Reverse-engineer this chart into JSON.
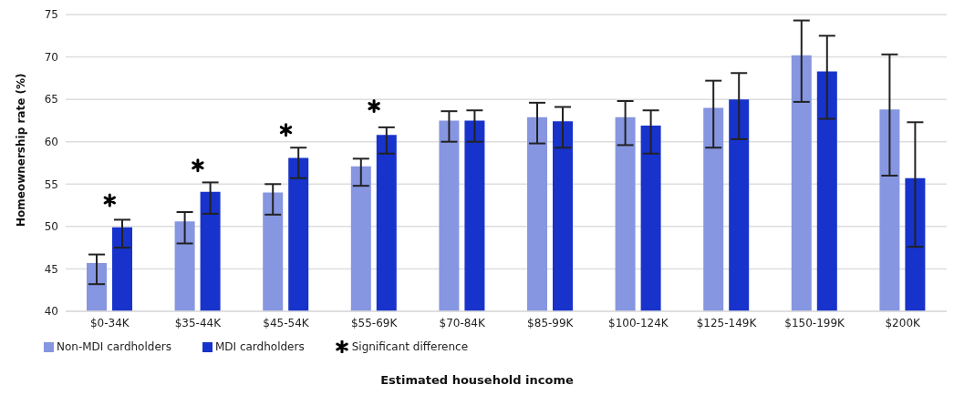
{
  "chart_data": {
    "type": "bar",
    "xlabel": "Estimated household income",
    "ylabel": "Homeownership rate (%)",
    "categories": [
      "$0-34K",
      "$35-44K",
      "$45-54K",
      "$55-69K",
      "$70-84K",
      "$85-99K",
      "$100-124K",
      "$125-149K",
      "$150-199K",
      "$200K"
    ],
    "series": [
      {
        "name": "Non-MDI cardholders",
        "color": "#8696e0",
        "values": [
          45.7,
          50.6,
          54.0,
          57.1,
          62.5,
          62.9,
          62.9,
          64.0,
          70.2,
          63.8
        ],
        "errors": [
          [
            43.2,
            46.7
          ],
          [
            48.0,
            51.7
          ],
          [
            51.4,
            55.0
          ],
          [
            54.8,
            58.0
          ],
          [
            60.0,
            63.6
          ],
          [
            59.8,
            64.6
          ],
          [
            59.6,
            64.8
          ],
          [
            59.3,
            67.2
          ],
          [
            64.7,
            74.3
          ],
          [
            56.0,
            70.3
          ]
        ]
      },
      {
        "name": "MDI cardholders",
        "color": "#1733cb",
        "values": [
          49.9,
          54.1,
          58.1,
          60.8,
          62.5,
          62.4,
          61.9,
          65.0,
          68.3,
          55.7
        ],
        "errors": [
          [
            47.5,
            50.8
          ],
          [
            51.5,
            55.2
          ],
          [
            55.7,
            59.3
          ],
          [
            58.6,
            61.7
          ],
          [
            60.0,
            63.7
          ],
          [
            59.3,
            64.1
          ],
          [
            58.6,
            63.7
          ],
          [
            60.3,
            68.1
          ],
          [
            62.7,
            72.5
          ],
          [
            47.6,
            62.3
          ]
        ]
      },
      {
        "name": "Significant difference",
        "type": "scatter",
        "color": "#000000",
        "values": [
          53.1,
          57.2,
          61.4,
          64.2,
          null,
          null,
          null,
          null,
          null,
          null
        ]
      }
    ],
    "ylim": [
      40,
      75
    ],
    "yticks": [
      40,
      45,
      50,
      55,
      60,
      65,
      70,
      75
    ],
    "grid": "y",
    "legend": "bottom",
    "marker": "cross"
  }
}
